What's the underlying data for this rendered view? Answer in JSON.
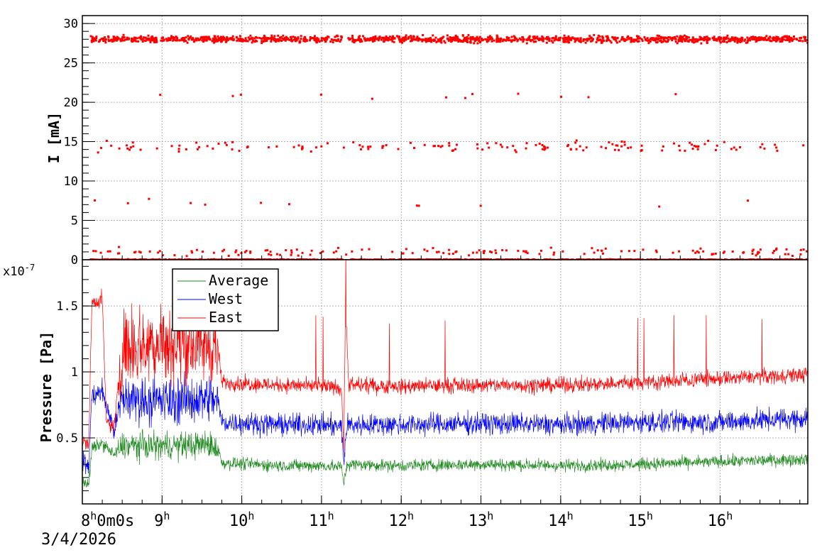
{
  "chart_data": [
    {
      "type": "scatter",
      "ylabel": "I [mA]",
      "xlim_hours": [
        8.0,
        17.1
      ],
      "ylim": [
        0,
        31
      ],
      "yticks": [
        {
          "value": 0,
          "label": "0"
        },
        {
          "value": 5,
          "label": "5"
        },
        {
          "value": 10,
          "label": "10"
        },
        {
          "value": 15,
          "label": "15"
        },
        {
          "value": 20,
          "label": "20"
        },
        {
          "value": 25,
          "label": "25"
        },
        {
          "value": 30,
          "label": "30"
        }
      ],
      "grid": true,
      "color": "#ff0000",
      "bands": [
        {
          "level": 28.0,
          "spread": 0.35,
          "density": "dense"
        },
        {
          "level": 0.0,
          "spread": 0.05,
          "density": "dense"
        },
        {
          "level": 14.4,
          "spread": 0.6,
          "density": "sparse"
        },
        {
          "level": 1.0,
          "spread": 0.4,
          "density": "sparse"
        },
        {
          "level": 20.8,
          "spread": 0.3,
          "density": "rare"
        },
        {
          "level": 7.0,
          "spread": 0.6,
          "density": "rare"
        }
      ]
    },
    {
      "type": "line",
      "ylabel": "Pressure [Pa]",
      "yscale_label": "x10",
      "yscale_exp": "-7",
      "xlim_hours": [
        8.0,
        17.1
      ],
      "ylim": [
        0.0,
        1.85
      ],
      "yticks": [
        {
          "value": 0.5,
          "label": "0.5"
        },
        {
          "value": 1.0,
          "label": "1"
        },
        {
          "value": 1.5,
          "label": "1.5"
        }
      ],
      "grid": true,
      "legend_position": "top-left",
      "series": [
        {
          "name": "Average",
          "color": "#228b22",
          "noise": 0.04,
          "profile": [
            [
              8.0,
              0.18
            ],
            [
              8.08,
              0.14
            ],
            [
              8.12,
              0.42
            ],
            [
              8.25,
              0.46
            ],
            [
              8.4,
              0.37
            ],
            [
              8.5,
              0.44
            ],
            [
              9.0,
              0.44
            ],
            [
              9.6,
              0.45
            ],
            [
              9.7,
              0.42
            ],
            [
              9.75,
              0.31
            ],
            [
              10.5,
              0.29
            ],
            [
              11.0,
              0.29
            ],
            [
              11.25,
              0.28
            ],
            [
              11.28,
              0.16
            ],
            [
              11.32,
              0.3
            ],
            [
              12.0,
              0.29
            ],
            [
              13.0,
              0.3
            ],
            [
              14.0,
              0.29
            ],
            [
              15.0,
              0.3
            ],
            [
              16.0,
              0.32
            ],
            [
              17.1,
              0.34
            ]
          ]
        },
        {
          "name": "West",
          "color": "#0000ff",
          "noise": 0.07,
          "profile": [
            [
              8.0,
              0.32
            ],
            [
              8.08,
              0.28
            ],
            [
              8.12,
              0.82
            ],
            [
              8.25,
              0.85
            ],
            [
              8.4,
              0.55
            ],
            [
              8.5,
              0.8
            ],
            [
              9.0,
              0.78
            ],
            [
              9.6,
              0.8
            ],
            [
              9.7,
              0.78
            ],
            [
              9.75,
              0.62
            ],
            [
              10.5,
              0.6
            ],
            [
              11.0,
              0.6
            ],
            [
              11.25,
              0.58
            ],
            [
              11.28,
              0.32
            ],
            [
              11.32,
              0.6
            ],
            [
              12.0,
              0.6
            ],
            [
              13.0,
              0.61
            ],
            [
              14.0,
              0.6
            ],
            [
              15.0,
              0.62
            ],
            [
              16.0,
              0.62
            ],
            [
              17.1,
              0.65
            ]
          ]
        },
        {
          "name": "East",
          "color": "#ff0000",
          "noise": 0.05,
          "profile": [
            [
              8.0,
              0.48
            ],
            [
              8.08,
              0.45
            ],
            [
              8.12,
              1.52
            ],
            [
              8.25,
              1.55
            ],
            [
              8.3,
              0.62
            ],
            [
              8.4,
              0.58
            ],
            [
              8.5,
              1.2
            ],
            [
              9.0,
              1.22
            ],
            [
              9.6,
              1.2
            ],
            [
              9.7,
              1.18
            ],
            [
              9.75,
              0.92
            ],
            [
              10.5,
              0.9
            ],
            [
              11.0,
              0.89
            ],
            [
              11.25,
              0.88
            ],
            [
              11.28,
              0.4
            ],
            [
              11.3,
              1.5
            ],
            [
              11.34,
              0.9
            ],
            [
              12.0,
              0.89
            ],
            [
              13.0,
              0.9
            ],
            [
              14.0,
              0.9
            ],
            [
              15.0,
              0.92
            ],
            [
              16.0,
              0.95
            ],
            [
              17.1,
              0.98
            ]
          ]
        }
      ]
    }
  ],
  "x_axis": {
    "ticks": [
      {
        "hour": 8,
        "label": "8",
        "suffix": "h",
        "extra": "0m0s"
      },
      {
        "hour": 9,
        "label": "9",
        "suffix": "h",
        "extra": ""
      },
      {
        "hour": 10,
        "label": "10",
        "suffix": "h",
        "extra": ""
      },
      {
        "hour": 11,
        "label": "11",
        "suffix": "h",
        "extra": ""
      },
      {
        "hour": 12,
        "label": "12",
        "suffix": "h",
        "extra": ""
      },
      {
        "hour": 13,
        "label": "13",
        "suffix": "h",
        "extra": ""
      },
      {
        "hour": 14,
        "label": "14",
        "suffix": "h",
        "extra": ""
      },
      {
        "hour": 15,
        "label": "15",
        "suffix": "h",
        "extra": ""
      },
      {
        "hour": 16,
        "label": "16",
        "suffix": "h",
        "extra": ""
      }
    ],
    "date": "3/4/2026"
  }
}
